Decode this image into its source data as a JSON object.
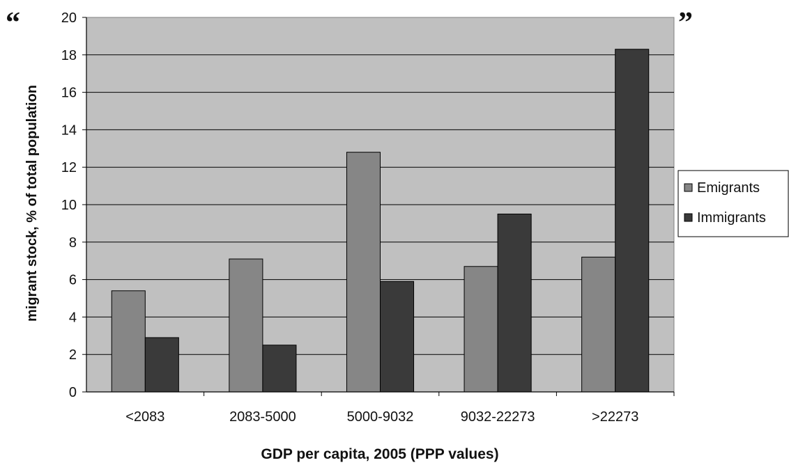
{
  "quotes": {
    "open": "“",
    "close": "”"
  },
  "chart_data": {
    "type": "bar",
    "title": "",
    "xlabel": "GDP per capita, 2005 (PPP values)",
    "ylabel": "migrant stock, % of total population",
    "categories": [
      "<2083",
      "2083-5000",
      "5000-9032",
      "9032-22273",
      ">22273"
    ],
    "series": [
      {
        "name": "Emigrants",
        "values": [
          5.4,
          7.1,
          12.8,
          6.7,
          7.2
        ],
        "color": "#868686"
      },
      {
        "name": "Immigrants",
        "values": [
          2.9,
          2.5,
          5.9,
          9.5,
          18.3
        ],
        "color": "#3a3a3a"
      }
    ],
    "ylim": [
      0,
      20
    ],
    "yticks": [
      "0",
      "2",
      "4",
      "6",
      "8",
      "10",
      "12",
      "14",
      "16",
      "18",
      "20"
    ],
    "grid": true,
    "plot_background": "#c0c0c0",
    "legend_position": "right"
  }
}
